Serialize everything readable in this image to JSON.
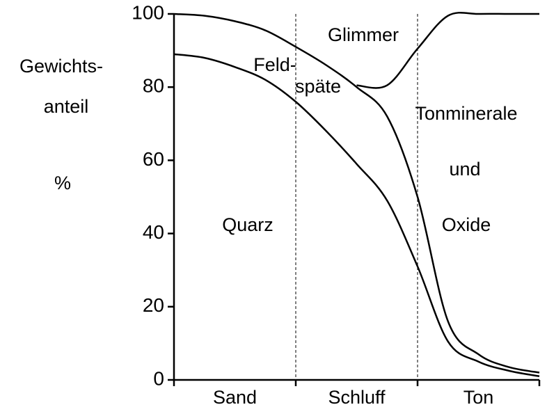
{
  "chart_data": {
    "type": "line",
    "ylabel": [
      "Gewichts-",
      "anteil",
      "%"
    ],
    "categories": [
      "Sand",
      "Schluff",
      "Ton"
    ],
    "x": [
      0,
      0.25,
      0.5,
      0.75,
      1,
      1.25,
      1.5,
      1.75,
      2,
      2.25,
      2.5,
      2.75,
      3
    ],
    "xlim": [
      0,
      3
    ],
    "xticks": [
      0,
      1,
      2,
      3
    ],
    "ylim": [
      0,
      100
    ],
    "yticks": [
      0,
      20,
      40,
      60,
      80,
      100
    ],
    "series": [
      {
        "color": "#000000",
        "values": [
          89,
          88,
          85.5,
          82,
          76,
          68,
          59,
          49,
          31,
          10.5,
          5,
          2.5,
          1
        ]
      },
      {
        "color": "#000000",
        "values": [
          100,
          99.5,
          98,
          95.5,
          91,
          86,
          80,
          72,
          50,
          16,
          7,
          3.5,
          2
        ]
      },
      {
        "color": "#000000",
        "values": [
          null,
          null,
          null,
          null,
          null,
          null,
          80.5,
          80.5,
          90.5,
          99.5,
          100,
          100,
          100
        ]
      }
    ],
    "annotations": [
      "Glimmer",
      "Feld-",
      "späte",
      "Tonminerale",
      "und",
      "Oxide",
      "Quarz"
    ]
  }
}
